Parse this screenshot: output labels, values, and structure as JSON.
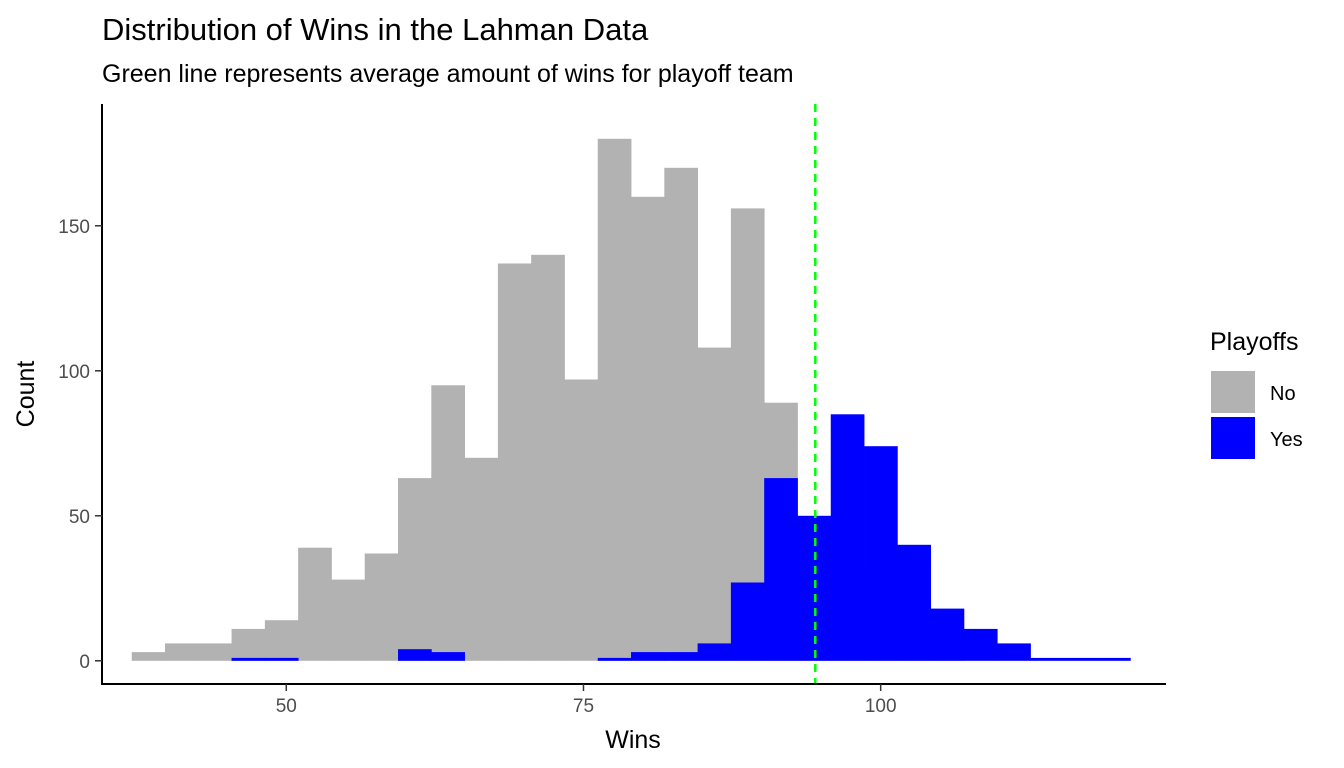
{
  "chart_data": {
    "type": "bar",
    "title": "Distribution of Wins in the Lahman Data",
    "subtitle": "Green line represents average amount of wins for playoff team",
    "xlabel": "Wins",
    "ylabel": "Count",
    "xlim": [
      34.5,
      124
    ],
    "ylim": [
      -8,
      192
    ],
    "x_ticks": [
      50,
      75,
      100
    ],
    "y_ticks": [
      0,
      50,
      100,
      150
    ],
    "grid": false,
    "legend": {
      "title": "Playoffs",
      "position": "right",
      "entries": [
        {
          "label": "No",
          "color": "#b2b2b2"
        },
        {
          "label": "Yes",
          "color": "#0000ff"
        }
      ]
    },
    "bin_edges": [
      37.0,
      39.8,
      42.6,
      45.4,
      48.2,
      51.0,
      53.8,
      56.6,
      59.4,
      62.2,
      65.0,
      67.8,
      70.6,
      73.4,
      76.2,
      79.0,
      81.8,
      84.6,
      87.4,
      90.2,
      93.0,
      95.8,
      98.6,
      101.4,
      104.2,
      107.0,
      109.8,
      112.6,
      115.4,
      118.2,
      121.0
    ],
    "series": [
      {
        "name": "No",
        "color": "#b2b2b2",
        "values": [
          3,
          6,
          6,
          11,
          14,
          39,
          28,
          37,
          63,
          95,
          70,
          137,
          140,
          97,
          180,
          160,
          170,
          108,
          156,
          89,
          41,
          30,
          11,
          3,
          3,
          0,
          0,
          0,
          0,
          0
        ]
      },
      {
        "name": "Yes",
        "color": "#0000ff",
        "values": [
          0,
          0,
          0,
          1,
          1,
          0,
          0,
          0,
          4,
          3,
          0,
          0,
          0,
          0,
          1,
          3,
          3,
          6,
          27,
          63,
          50,
          85,
          74,
          40,
          18,
          11,
          6,
          1,
          1,
          1
        ]
      }
    ],
    "reference_line": {
      "x": 94.5,
      "color": "#00ff00",
      "style": "dashed"
    }
  }
}
